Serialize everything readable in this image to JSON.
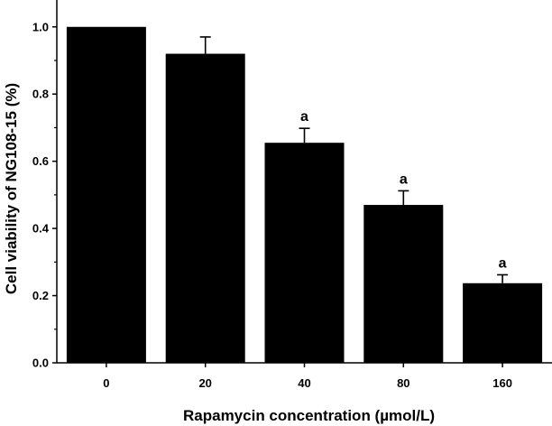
{
  "chart_data": {
    "type": "bar",
    "title": "",
    "xlabel": "Rapamycin concentration (µmol/L)",
    "ylabel": "Cell viability of NG108-15 (%)",
    "categories": [
      "0",
      "20",
      "40",
      "80",
      "160"
    ],
    "values": [
      1.0,
      0.92,
      0.655,
      0.47,
      0.237
    ],
    "error": [
      0.0,
      0.05,
      0.043,
      0.042,
      0.025
    ],
    "annotations": [
      "",
      "",
      "a",
      "a",
      "a"
    ],
    "ylim": [
      0.0,
      1.08
    ],
    "yticks": [
      "0.0",
      "0.2",
      "0.4",
      "0.6",
      "0.8",
      "1.0"
    ],
    "bar_color": "#000000",
    "grid": false,
    "legend": "none"
  }
}
